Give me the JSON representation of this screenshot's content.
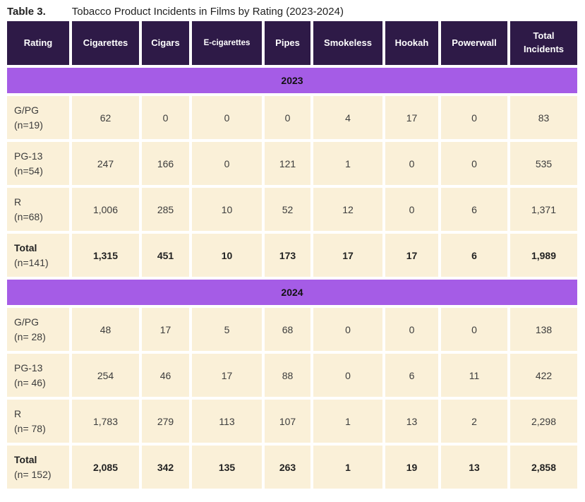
{
  "title": {
    "label": "Table 3.",
    "caption": "Tobacco Product Incidents in Films by Rating (2023-2024)"
  },
  "columns": [
    "Rating",
    "Cigarettes",
    "Cigars",
    "E-cigarettes",
    "Pipes",
    "Smokeless",
    "Hookah",
    "Powerwall",
    "Total Incidents"
  ],
  "sections": [
    {
      "year": "2023",
      "rows": [
        {
          "rating": "G/PG",
          "n": "(n=19)",
          "is_total": false,
          "values": [
            "62",
            "0",
            "0",
            "0",
            "4",
            "17",
            "0",
            "83"
          ]
        },
        {
          "rating": "PG-13",
          "n": "(n=54)",
          "is_total": false,
          "values": [
            "247",
            "166",
            "0",
            "121",
            "1",
            "0",
            "0",
            "535"
          ]
        },
        {
          "rating": "R",
          "n": "(n=68)",
          "is_total": false,
          "values": [
            "1,006",
            "285",
            "10",
            "52",
            "12",
            "0",
            "6",
            "1,371"
          ]
        },
        {
          "rating": "Total",
          "n": "(n=141)",
          "is_total": true,
          "values": [
            "1,315",
            "451",
            "10",
            "173",
            "17",
            "17",
            "6",
            "1,989"
          ]
        }
      ]
    },
    {
      "year": "2024",
      "rows": [
        {
          "rating": "G/PG",
          "n": "(n= 28)",
          "is_total": false,
          "values": [
            "48",
            "17",
            "5",
            "68",
            "0",
            "0",
            "0",
            "138"
          ]
        },
        {
          "rating": "PG-13",
          "n": "(n= 46)",
          "is_total": false,
          "values": [
            "254",
            "46",
            "17",
            "88",
            "0",
            "6",
            "11",
            "422"
          ]
        },
        {
          "rating": "R",
          "n": "(n= 78)",
          "is_total": false,
          "values": [
            "1,783",
            "279",
            "113",
            "107",
            "1",
            "13",
            "2",
            "2,298"
          ]
        },
        {
          "rating": "Total",
          "n": "(n= 152)",
          "is_total": true,
          "values": [
            "2,085",
            "342",
            "135",
            "263",
            "1",
            "19",
            "13",
            "2,858"
          ]
        }
      ]
    }
  ],
  "colors": {
    "header_bg": "#2e1a47",
    "band_bg": "#a55ce6",
    "cell_bg": "#faf0d8",
    "header_text": "#ffffff",
    "body_text": "#3c3c3c",
    "title_text": "#222222"
  }
}
